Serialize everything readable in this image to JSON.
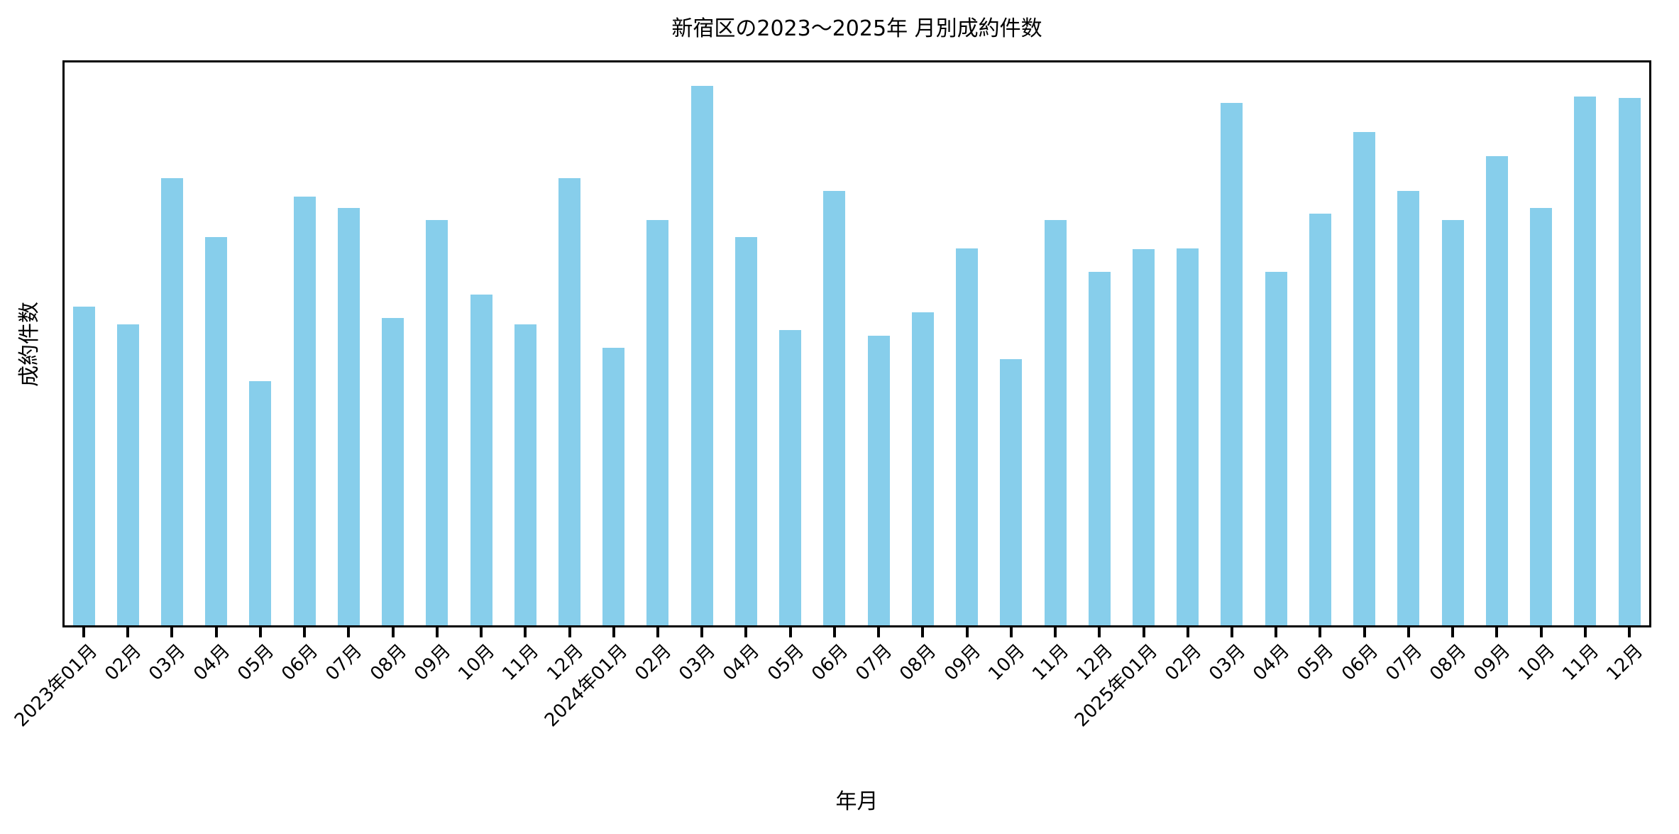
{
  "title": "新宿区の2023〜2025年 月別成約件数",
  "colors": {
    "bar": "#87CEEB",
    "axis": "#000000",
    "background": "#ffffff",
    "text": "#000000"
  },
  "chart_data": {
    "type": "bar",
    "title": "新宿区の2023〜2025年 月別成約件数",
    "xlabel": "年月",
    "ylabel": "成約件数",
    "categories": [
      "2023年01月",
      "02月",
      "03月",
      "04月",
      "05月",
      "06月",
      "07月",
      "08月",
      "09月",
      "10月",
      "11月",
      "12月",
      "2024年01月",
      "02月",
      "03月",
      "04月",
      "05月",
      "06月",
      "07月",
      "08月",
      "09月",
      "10月",
      "11月",
      "12月",
      "2025年01月",
      "02月",
      "03月",
      "04月",
      "05月",
      "06月",
      "07月",
      "08月",
      "09月",
      "10月",
      "11月",
      "12月"
    ],
    "values": [
      59.1,
      55.8,
      82.9,
      72.0,
      45.3,
      79.5,
      77.4,
      57.0,
      75.1,
      61.3,
      55.8,
      82.9,
      51.4,
      75.1,
      100.0,
      72.0,
      54.7,
      80.5,
      53.7,
      58.0,
      69.9,
      49.3,
      75.1,
      65.5,
      69.7,
      69.9,
      96.8,
      65.5,
      76.3,
      91.4,
      80.5,
      75.1,
      87.0,
      77.4,
      98.0,
      97.8
    ],
    "value_scale": "relative, tallest bar (2024年03月) = 100; y axis shows no numeric tick labels",
    "ylim": [
      0,
      105.1
    ],
    "y_tick_labels": [],
    "x_tick_rotation_deg": 45,
    "grid": false,
    "legend": "none",
    "bar_color": "#87CEEB"
  }
}
